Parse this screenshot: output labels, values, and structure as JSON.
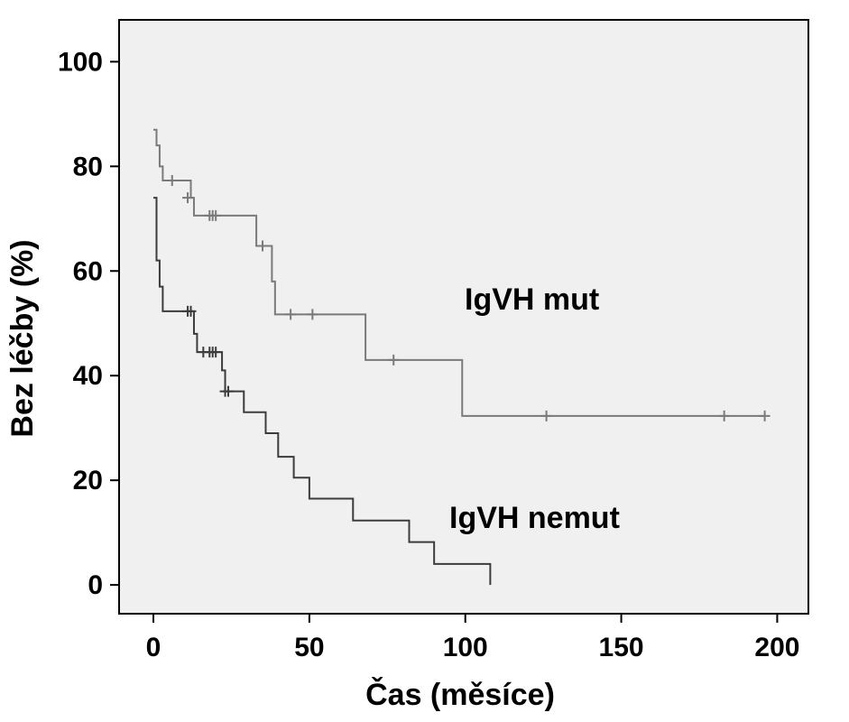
{
  "chart_data": {
    "type": "line",
    "step": "kaplan-meier",
    "title": "",
    "xlabel": "Čas (měsíce)",
    "ylabel": "Bez léčby (%)",
    "xlim": [
      -11,
      210
    ],
    "ylim": [
      -5.5,
      108
    ],
    "xticks": [
      0,
      50,
      100,
      150,
      200
    ],
    "yticks": [
      0,
      20,
      40,
      60,
      80,
      100
    ],
    "grid": false,
    "legend": "none",
    "plot_background": "#f0f0f0",
    "series": [
      {
        "name": "IgVH mut",
        "color": "#7a7a7a",
        "steps": [
          [
            0,
            87
          ],
          [
            1,
            84
          ],
          [
            2,
            80
          ],
          [
            3,
            77.3
          ],
          [
            12,
            74
          ],
          [
            13,
            70.6
          ],
          [
            33,
            64.8
          ],
          [
            38,
            58
          ],
          [
            39,
            51.7
          ],
          [
            68,
            43
          ],
          [
            99,
            32.3
          ],
          [
            196,
            32.3
          ]
        ],
        "censored": [
          [
            6,
            77.3
          ],
          [
            11,
            74
          ],
          [
            18,
            70.6
          ],
          [
            19,
            70.6
          ],
          [
            20,
            70.6
          ],
          [
            35,
            64.8
          ],
          [
            44,
            51.7
          ],
          [
            51,
            51.7
          ],
          [
            77,
            43
          ],
          [
            126,
            32.3
          ],
          [
            183,
            32.3
          ],
          [
            196,
            32.3
          ]
        ]
      },
      {
        "name": "IgVH nemut",
        "color": "#3c3c3c",
        "steps": [
          [
            0,
            74
          ],
          [
            1,
            62
          ],
          [
            2,
            57
          ],
          [
            3,
            52.3
          ],
          [
            13,
            48
          ],
          [
            14,
            44.5
          ],
          [
            22,
            41
          ],
          [
            23,
            37
          ],
          [
            29,
            33
          ],
          [
            36,
            29
          ],
          [
            40,
            24.5
          ],
          [
            45,
            20.5
          ],
          [
            50,
            16.5
          ],
          [
            64,
            12.3
          ],
          [
            82,
            8.2
          ],
          [
            90,
            4
          ],
          [
            108,
            0
          ]
        ],
        "censored": [
          [
            11,
            52.3
          ],
          [
            12,
            52.3
          ],
          [
            16,
            44.5
          ],
          [
            18,
            44.5
          ],
          [
            19,
            44.5
          ],
          [
            20,
            44.5
          ],
          [
            23,
            37
          ],
          [
            24,
            37
          ]
        ]
      }
    ]
  }
}
